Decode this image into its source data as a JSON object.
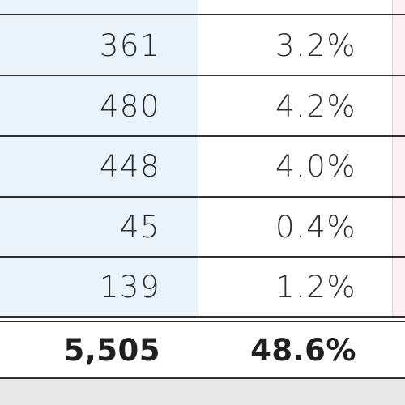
{
  "colors": {
    "count_column_bg": "#e8f3fc",
    "edge_column_bg": "#fdeef2",
    "rule_color": "#2e2e2e",
    "text_color": "#2b2b2b",
    "footer_band": "#e7e7e7"
  },
  "table": {
    "rows": [
      {
        "count": "361",
        "percent": "3.2%"
      },
      {
        "count": "480",
        "percent": "4.2%"
      },
      {
        "count": "448",
        "percent": "4.0%"
      },
      {
        "count": "45",
        "percent": "0.4%"
      },
      {
        "count": "139",
        "percent": "1.2%"
      }
    ],
    "total": {
      "count": "5,505",
      "percent": "48.6%"
    }
  }
}
